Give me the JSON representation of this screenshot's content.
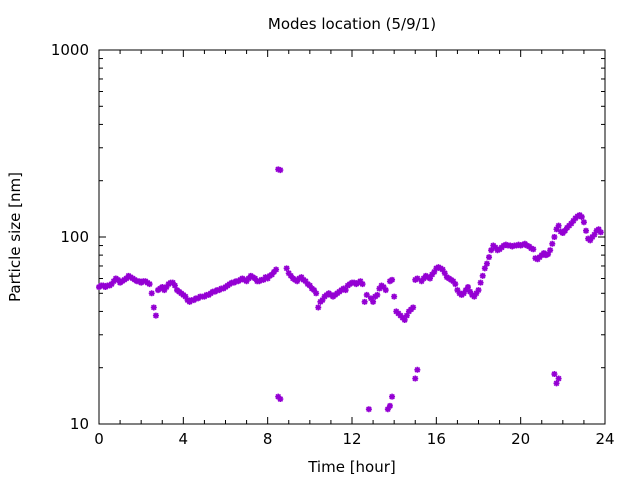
{
  "chart_data": {
    "type": "scatter",
    "title": "Modes location (5/9/1)",
    "xlabel": "Time [hour]",
    "ylabel": "Particle size [nm]",
    "xlim": [
      0,
      24
    ],
    "ylim": [
      10,
      1000
    ],
    "yscale": "log",
    "grid": false,
    "legend": "none",
    "marker_color": "#9400d3",
    "x_ticks": [
      0,
      4,
      8,
      12,
      16,
      20,
      24
    ],
    "x_tick_labels": [
      "0",
      "4",
      "8",
      "12",
      "16",
      "20",
      "24"
    ],
    "y_ticks": [
      10,
      100,
      1000
    ],
    "y_tick_labels": [
      "10",
      "100",
      "1000"
    ],
    "series": [
      {
        "points": [
          [
            0.0,
            54
          ],
          [
            0.1,
            55
          ],
          [
            0.2,
            55
          ],
          [
            0.3,
            54
          ],
          [
            0.4,
            55
          ],
          [
            0.5,
            55
          ],
          [
            0.6,
            56
          ],
          [
            0.7,
            58
          ],
          [
            0.8,
            60
          ],
          [
            0.9,
            59
          ],
          [
            1.0,
            57
          ],
          [
            1.1,
            58
          ],
          [
            1.2,
            59
          ],
          [
            1.3,
            60
          ],
          [
            1.4,
            62
          ],
          [
            1.5,
            61
          ],
          [
            1.6,
            60
          ],
          [
            1.7,
            59
          ],
          [
            1.8,
            58
          ],
          [
            1.9,
            58
          ],
          [
            2.0,
            57
          ],
          [
            2.1,
            58
          ],
          [
            2.2,
            58
          ],
          [
            2.3,
            57
          ],
          [
            2.4,
            56
          ],
          [
            2.5,
            50
          ],
          [
            2.6,
            42
          ],
          [
            2.7,
            38
          ],
          [
            2.8,
            52
          ],
          [
            2.9,
            53
          ],
          [
            3.0,
            54
          ],
          [
            3.1,
            52
          ],
          [
            3.2,
            54
          ],
          [
            3.3,
            56
          ],
          [
            3.4,
            57
          ],
          [
            3.5,
            57
          ],
          [
            3.6,
            55
          ],
          [
            3.7,
            52
          ],
          [
            3.8,
            51
          ],
          [
            3.9,
            50
          ],
          [
            4.0,
            49
          ],
          [
            4.1,
            48
          ],
          [
            4.2,
            46
          ],
          [
            4.3,
            45
          ],
          [
            4.4,
            46
          ],
          [
            4.5,
            46
          ],
          [
            4.6,
            47
          ],
          [
            4.7,
            47
          ],
          [
            4.8,
            48
          ],
          [
            4.9,
            48
          ],
          [
            5.0,
            48
          ],
          [
            5.1,
            49
          ],
          [
            5.2,
            49
          ],
          [
            5.3,
            50
          ],
          [
            5.4,
            51
          ],
          [
            5.5,
            51
          ],
          [
            5.6,
            52
          ],
          [
            5.7,
            52
          ],
          [
            5.8,
            53
          ],
          [
            5.9,
            53
          ],
          [
            6.0,
            54
          ],
          [
            6.1,
            55
          ],
          [
            6.2,
            56
          ],
          [
            6.3,
            57
          ],
          [
            6.4,
            57
          ],
          [
            6.5,
            58
          ],
          [
            6.6,
            58
          ],
          [
            6.7,
            59
          ],
          [
            6.8,
            60
          ],
          [
            6.9,
            59
          ],
          [
            7.0,
            58
          ],
          [
            7.1,
            60
          ],
          [
            7.2,
            62
          ],
          [
            7.3,
            61
          ],
          [
            7.4,
            60
          ],
          [
            7.5,
            58
          ],
          [
            7.6,
            58
          ],
          [
            7.7,
            59
          ],
          [
            7.8,
            59
          ],
          [
            7.9,
            61
          ],
          [
            8.0,
            60
          ],
          [
            8.1,
            62
          ],
          [
            8.2,
            63
          ],
          [
            8.3,
            65
          ],
          [
            8.4,
            67
          ],
          [
            8.5,
            14
          ],
          [
            8.6,
            13.6
          ],
          [
            8.5,
            230
          ],
          [
            8.6,
            228
          ],
          [
            8.9,
            68
          ],
          [
            9.0,
            64
          ],
          [
            9.1,
            62
          ],
          [
            9.2,
            60
          ],
          [
            9.3,
            59
          ],
          [
            9.4,
            58
          ],
          [
            9.5,
            60
          ],
          [
            9.6,
            61
          ],
          [
            9.7,
            59
          ],
          [
            9.8,
            58
          ],
          [
            9.9,
            56
          ],
          [
            10.0,
            55
          ],
          [
            10.1,
            53
          ],
          [
            10.2,
            52
          ],
          [
            10.3,
            50
          ],
          [
            10.4,
            42
          ],
          [
            10.5,
            45
          ],
          [
            10.6,
            46
          ],
          [
            10.7,
            48
          ],
          [
            10.8,
            49
          ],
          [
            10.9,
            50
          ],
          [
            11.0,
            49
          ],
          [
            11.1,
            48
          ],
          [
            11.2,
            49
          ],
          [
            11.3,
            50
          ],
          [
            11.4,
            51
          ],
          [
            11.5,
            52
          ],
          [
            11.6,
            53
          ],
          [
            11.7,
            52
          ],
          [
            11.8,
            55
          ],
          [
            11.9,
            56
          ],
          [
            12.0,
            57
          ],
          [
            12.1,
            57
          ],
          [
            12.2,
            56
          ],
          [
            12.3,
            57
          ],
          [
            12.4,
            58
          ],
          [
            12.5,
            56
          ],
          [
            12.6,
            45
          ],
          [
            12.7,
            49
          ],
          [
            12.8,
            12
          ],
          [
            12.9,
            47
          ],
          [
            13.0,
            45
          ],
          [
            13.1,
            48
          ],
          [
            13.2,
            49
          ],
          [
            13.3,
            53
          ],
          [
            13.4,
            55
          ],
          [
            13.5,
            54
          ],
          [
            13.6,
            52
          ],
          [
            13.7,
            12
          ],
          [
            13.8,
            12.5
          ],
          [
            13.9,
            14
          ],
          [
            13.8,
            58
          ],
          [
            13.9,
            59
          ],
          [
            14.0,
            48
          ],
          [
            14.1,
            40
          ],
          [
            14.2,
            39
          ],
          [
            14.3,
            38
          ],
          [
            14.4,
            37
          ],
          [
            14.5,
            36
          ],
          [
            14.6,
            38
          ],
          [
            14.7,
            40
          ],
          [
            14.8,
            41
          ],
          [
            14.9,
            42
          ],
          [
            15.0,
            59
          ],
          [
            15.1,
            60
          ],
          [
            15.0,
            17.5
          ],
          [
            15.1,
            19.5
          ],
          [
            15.3,
            58
          ],
          [
            15.4,
            60
          ],
          [
            15.5,
            62
          ],
          [
            15.6,
            61
          ],
          [
            15.7,
            60
          ],
          [
            15.8,
            63
          ],
          [
            15.9,
            65
          ],
          [
            16.0,
            68
          ],
          [
            16.1,
            69
          ],
          [
            16.2,
            68
          ],
          [
            16.3,
            67
          ],
          [
            16.4,
            64
          ],
          [
            16.5,
            61
          ],
          [
            16.6,
            60
          ],
          [
            16.7,
            59
          ],
          [
            16.8,
            58
          ],
          [
            16.9,
            56
          ],
          [
            17.0,
            52
          ],
          [
            17.1,
            50
          ],
          [
            17.2,
            49
          ],
          [
            17.3,
            50
          ],
          [
            17.4,
            52
          ],
          [
            17.5,
            54
          ],
          [
            17.6,
            51
          ],
          [
            17.7,
            49
          ],
          [
            17.8,
            48
          ],
          [
            17.9,
            50
          ],
          [
            18.0,
            52
          ],
          [
            18.1,
            57
          ],
          [
            18.2,
            62
          ],
          [
            18.3,
            68
          ],
          [
            18.4,
            72
          ],
          [
            18.5,
            78
          ],
          [
            18.6,
            85
          ],
          [
            18.7,
            90
          ],
          [
            18.8,
            88
          ],
          [
            18.9,
            85
          ],
          [
            19.0,
            86
          ],
          [
            19.1,
            88
          ],
          [
            19.2,
            90
          ],
          [
            19.3,
            91
          ],
          [
            19.4,
            90
          ],
          [
            19.5,
            90
          ],
          [
            19.6,
            89
          ],
          [
            19.7,
            90
          ],
          [
            19.8,
            90
          ],
          [
            19.9,
            91
          ],
          [
            20.0,
            90
          ],
          [
            20.1,
            91
          ],
          [
            20.2,
            92
          ],
          [
            20.3,
            90
          ],
          [
            20.4,
            89
          ],
          [
            20.5,
            87
          ],
          [
            20.6,
            86
          ],
          [
            20.7,
            77
          ],
          [
            20.8,
            76
          ],
          [
            20.9,
            78
          ],
          [
            21.0,
            80
          ],
          [
            21.1,
            82
          ],
          [
            21.2,
            80
          ],
          [
            21.3,
            81
          ],
          [
            21.4,
            85
          ],
          [
            21.5,
            92
          ],
          [
            21.6,
            18.5
          ],
          [
            21.7,
            16.5
          ],
          [
            21.8,
            17.5
          ],
          [
            21.6,
            100
          ],
          [
            21.7,
            110
          ],
          [
            21.8,
            115
          ],
          [
            21.9,
            107
          ],
          [
            22.0,
            105
          ],
          [
            22.1,
            108
          ],
          [
            22.2,
            112
          ],
          [
            22.3,
            115
          ],
          [
            22.4,
            118
          ],
          [
            22.5,
            122
          ],
          [
            22.6,
            126
          ],
          [
            22.7,
            129
          ],
          [
            22.8,
            131
          ],
          [
            22.9,
            128
          ],
          [
            23.0,
            120
          ],
          [
            23.1,
            108
          ],
          [
            23.2,
            98
          ],
          [
            23.3,
            96
          ],
          [
            23.4,
            100
          ],
          [
            23.5,
            103
          ],
          [
            23.6,
            108
          ],
          [
            23.7,
            110
          ],
          [
            23.8,
            106
          ]
        ]
      }
    ]
  }
}
